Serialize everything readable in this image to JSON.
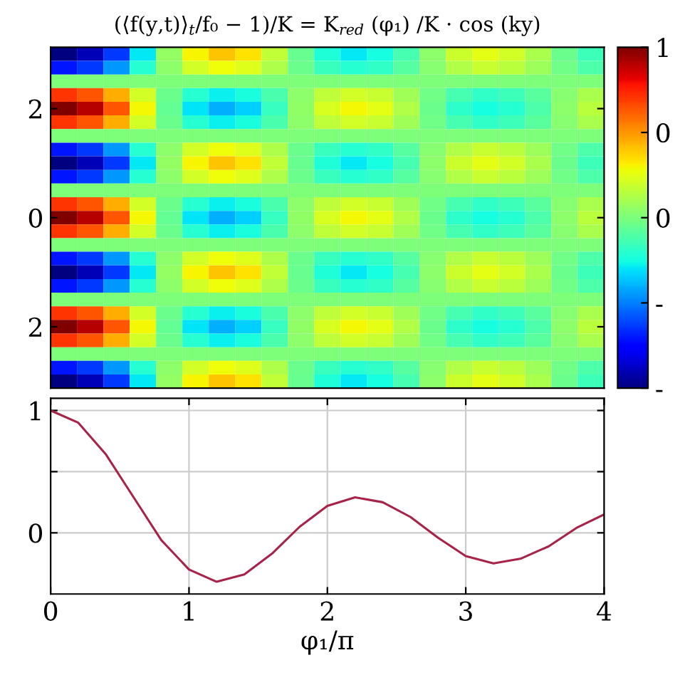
{
  "chart_data": [
    {
      "type": "heatmap",
      "title": "(⟨f(y,t)⟩$_{t}$/f₀ − 1)/K = K$_{red}$ (φ₁) /K · cos (ky)",
      "categories": [
        null,
        null,
        null,
        null,
        null,
        null,
        null,
        null,
        null,
        null,
        null,
        null,
        null,
        null,
        null,
        null,
        null,
        null,
        null,
        null,
        null
      ],
      "y_categories": [
        null,
        null,
        null,
        null,
        "2",
        null,
        null,
        null,
        null,
        null,
        null,
        null,
        "0",
        null,
        null,
        null,
        null,
        null,
        null,
        null,
        "2",
        null,
        null,
        null,
        null
      ],
      "tick_labels": "y",
      "clim": [
        -1,
        1
      ],
      "cticks": [
        {
          "value": -1,
          "label": "-"
        },
        {
          "value": -0.5,
          "label": "-"
        },
        0,
        {
          "value": 0.5,
          "label": "0"
        },
        1
      ],
      "cells": [
        [
          -1,
          -0.9,
          -0.64,
          -0.29,
          0.06,
          0.3,
          0.4,
          0.34,
          0.17,
          -0.05,
          -0.22,
          -0.29,
          -0.25,
          -0.13,
          0.04,
          0.19,
          0.25,
          0.21,
          0.11,
          -0.04,
          -0.15
        ],
        [
          -0.71,
          -0.64,
          -0.45,
          -0.21,
          0.04,
          0.21,
          0.28,
          0.24,
          0.12,
          -0.04,
          -0.16,
          -0.21,
          -0.18,
          -0.09,
          0.03,
          0.13,
          0.18,
          0.15,
          0.08,
          -0.03,
          -0.11
        ],
        [
          0,
          0,
          0,
          0,
          0,
          0,
          0,
          0,
          0,
          0,
          0,
          0,
          0,
          0,
          0,
          0,
          0,
          0,
          0,
          0,
          0
        ],
        [
          0.71,
          0.64,
          0.45,
          0.21,
          -0.04,
          -0.21,
          -0.28,
          -0.24,
          -0.12,
          0.04,
          0.16,
          0.21,
          0.18,
          0.09,
          -0.03,
          -0.13,
          -0.18,
          -0.15,
          -0.08,
          0.03,
          0.11
        ],
        [
          1,
          0.9,
          0.64,
          0.29,
          -0.06,
          -0.3,
          -0.4,
          -0.34,
          -0.17,
          0.05,
          0.22,
          0.29,
          0.25,
          0.13,
          -0.04,
          -0.19,
          -0.25,
          -0.21,
          -0.11,
          0.04,
          0.15
        ],
        [
          0.71,
          0.64,
          0.45,
          0.21,
          -0.04,
          -0.21,
          -0.28,
          -0.24,
          -0.12,
          0.04,
          0.16,
          0.21,
          0.18,
          0.09,
          -0.03,
          -0.13,
          -0.18,
          -0.15,
          -0.08,
          0.03,
          0.11
        ],
        [
          0,
          0,
          0,
          0,
          0,
          0,
          0,
          0,
          0,
          0,
          0,
          0,
          0,
          0,
          0,
          0,
          0,
          0,
          0,
          0,
          0
        ],
        [
          -0.71,
          -0.64,
          -0.45,
          -0.21,
          0.04,
          0.21,
          0.28,
          0.24,
          0.12,
          -0.04,
          -0.16,
          -0.21,
          -0.18,
          -0.09,
          0.03,
          0.13,
          0.18,
          0.15,
          0.08,
          -0.03,
          -0.11
        ],
        [
          -1,
          -0.9,
          -0.64,
          -0.29,
          0.06,
          0.3,
          0.4,
          0.34,
          0.17,
          -0.05,
          -0.22,
          -0.29,
          -0.25,
          -0.13,
          0.04,
          0.19,
          0.25,
          0.21,
          0.11,
          -0.04,
          -0.15
        ],
        [
          -0.71,
          -0.64,
          -0.45,
          -0.21,
          0.04,
          0.21,
          0.28,
          0.24,
          0.12,
          -0.04,
          -0.16,
          -0.21,
          -0.18,
          -0.09,
          0.03,
          0.13,
          0.18,
          0.15,
          0.08,
          -0.03,
          -0.11
        ],
        [
          0,
          0,
          0,
          0,
          0,
          0,
          0,
          0,
          0,
          0,
          0,
          0,
          0,
          0,
          0,
          0,
          0,
          0,
          0,
          0,
          0
        ],
        [
          0.71,
          0.64,
          0.45,
          0.21,
          -0.04,
          -0.21,
          -0.28,
          -0.24,
          -0.12,
          0.04,
          0.16,
          0.21,
          0.18,
          0.09,
          -0.03,
          -0.13,
          -0.18,
          -0.15,
          -0.08,
          0.03,
          0.11
        ],
        [
          1,
          0.9,
          0.64,
          0.29,
          -0.06,
          -0.3,
          -0.4,
          -0.34,
          -0.17,
          0.05,
          0.22,
          0.29,
          0.25,
          0.13,
          -0.04,
          -0.19,
          -0.25,
          -0.21,
          -0.11,
          0.04,
          0.15
        ],
        [
          0.71,
          0.64,
          0.45,
          0.21,
          -0.04,
          -0.21,
          -0.28,
          -0.24,
          -0.12,
          0.04,
          0.16,
          0.21,
          0.18,
          0.09,
          -0.03,
          -0.13,
          -0.18,
          -0.15,
          -0.08,
          0.03,
          0.11
        ],
        [
          0,
          0,
          0,
          0,
          0,
          0,
          0,
          0,
          0,
          0,
          0,
          0,
          0,
          0,
          0,
          0,
          0,
          0,
          0,
          0,
          0
        ],
        [
          -0.71,
          -0.64,
          -0.45,
          -0.21,
          0.04,
          0.21,
          0.28,
          0.24,
          0.12,
          -0.04,
          -0.16,
          -0.21,
          -0.18,
          -0.09,
          0.03,
          0.13,
          0.18,
          0.15,
          0.08,
          -0.03,
          -0.11
        ],
        [
          -1,
          -0.9,
          -0.64,
          -0.29,
          0.06,
          0.3,
          0.4,
          0.34,
          0.17,
          -0.05,
          -0.22,
          -0.29,
          -0.25,
          -0.13,
          0.04,
          0.19,
          0.25,
          0.21,
          0.11,
          -0.04,
          -0.15
        ],
        [
          -0.71,
          -0.64,
          -0.45,
          -0.21,
          0.04,
          0.21,
          0.28,
          0.24,
          0.12,
          -0.04,
          -0.16,
          -0.21,
          -0.18,
          -0.09,
          0.03,
          0.13,
          0.18,
          0.15,
          0.08,
          -0.03,
          -0.11
        ],
        [
          0,
          0,
          0,
          0,
          0,
          0,
          0,
          0,
          0,
          0,
          0,
          0,
          0,
          0,
          0,
          0,
          0,
          0,
          0,
          0,
          0
        ],
        [
          0.71,
          0.64,
          0.45,
          0.21,
          -0.04,
          -0.21,
          -0.28,
          -0.24,
          -0.12,
          0.04,
          0.16,
          0.21,
          0.18,
          0.09,
          -0.03,
          -0.13,
          -0.18,
          -0.15,
          -0.08,
          0.03,
          0.11
        ],
        [
          1,
          0.9,
          0.64,
          0.29,
          -0.06,
          -0.3,
          -0.4,
          -0.34,
          -0.17,
          0.05,
          0.22,
          0.29,
          0.25,
          0.13,
          -0.04,
          -0.19,
          -0.25,
          -0.21,
          -0.11,
          0.04,
          0.15
        ],
        [
          0.71,
          0.64,
          0.45,
          0.21,
          -0.04,
          -0.21,
          -0.28,
          -0.24,
          -0.12,
          0.04,
          0.16,
          0.21,
          0.18,
          0.09,
          -0.03,
          -0.13,
          -0.18,
          -0.15,
          -0.08,
          0.03,
          0.11
        ],
        [
          0,
          0,
          0,
          0,
          0,
          0,
          0,
          0,
          0,
          0,
          0,
          0,
          0,
          0,
          0,
          0,
          0,
          0,
          0,
          0,
          0
        ],
        [
          -0.71,
          -0.64,
          -0.45,
          -0.21,
          0.04,
          0.21,
          0.28,
          0.24,
          0.12,
          -0.04,
          -0.16,
          -0.21,
          -0.18,
          -0.09,
          0.03,
          0.13,
          0.18,
          0.15,
          0.08,
          -0.03,
          -0.11
        ],
        [
          -1,
          -0.9,
          -0.64,
          -0.29,
          0.06,
          0.3,
          0.4,
          0.34,
          0.17,
          -0.05,
          -0.22,
          -0.29,
          -0.25,
          -0.13,
          0.04,
          0.19,
          0.25,
          0.21,
          0.11,
          -0.04,
          -0.15
        ]
      ]
    },
    {
      "type": "line",
      "xlabel": "φ₁/π",
      "grid": true,
      "x": [
        0,
        0.2,
        0.4,
        0.6,
        0.8,
        1.0,
        1.2,
        1.4,
        1.6,
        1.8,
        2.0,
        2.2,
        2.4,
        2.6,
        2.8,
        3.0,
        3.2,
        3.4,
        3.6,
        3.8,
        4.0
      ],
      "series": [
        {
          "color": "#a8234a",
          "values": [
            1,
            0.9,
            0.64,
            0.29,
            -0.06,
            -0.3,
            -0.4,
            -0.34,
            -0.17,
            0.05,
            0.22,
            0.29,
            0.25,
            0.13,
            -0.04,
            -0.19,
            -0.25,
            -0.21,
            -0.11,
            0.04,
            0.15
          ]
        }
      ],
      "xlim": [
        0,
        4
      ],
      "ylim": [
        -0.5,
        1.1
      ],
      "xticks": [
        0,
        1,
        2,
        3,
        4
      ],
      "yticks": [
        0,
        {
          "value": 0.5,
          "label": null
        },
        1
      ]
    }
  ]
}
